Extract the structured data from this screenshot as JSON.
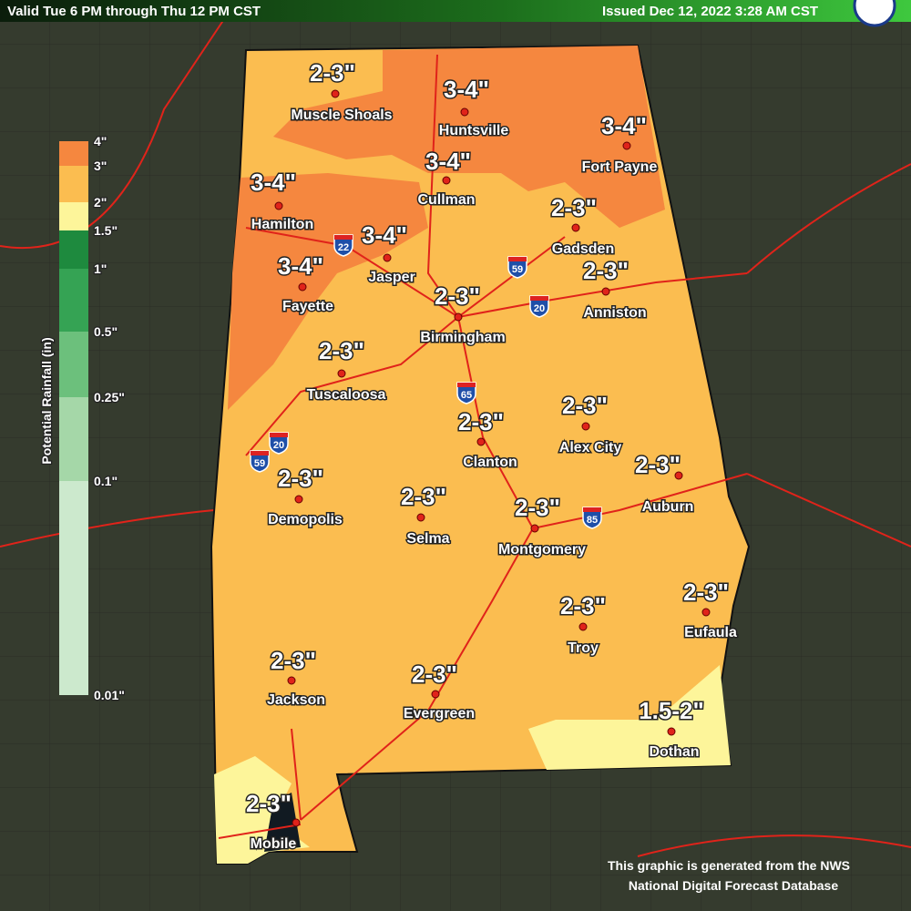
{
  "header": {
    "valid": "Valid Tue 6 PM through Thu 12 PM CST",
    "issued": "Issued Dec 12, 2022 3:28 AM CST"
  },
  "legend": {
    "title": "Potential Rainfall (in)",
    "labels": [
      "4\"",
      "3\"",
      "2\"",
      "1.5\"",
      "1\"",
      "0.5\"",
      "0.25\"",
      "0.1\"",
      "0.01\""
    ]
  },
  "locations": [
    {
      "name": "Muscle Shoals",
      "amount": "2-3\""
    },
    {
      "name": "Huntsville",
      "amount": "3-4\""
    },
    {
      "name": "Fort Payne",
      "amount": "3-4\""
    },
    {
      "name": "Cullman",
      "amount": "3-4\""
    },
    {
      "name": "Hamilton",
      "amount": "3-4\""
    },
    {
      "name": "Jasper",
      "amount": "3-4\""
    },
    {
      "name": "Fayette",
      "amount": "3-4\""
    },
    {
      "name": "Gadsden",
      "amount": "2-3\""
    },
    {
      "name": "Anniston",
      "amount": "2-3\""
    },
    {
      "name": "Birmingham",
      "amount": "2-3\""
    },
    {
      "name": "Tuscaloosa",
      "amount": "2-3\""
    },
    {
      "name": "Alex City",
      "amount": "2-3\""
    },
    {
      "name": "Clanton",
      "amount": "2-3\""
    },
    {
      "name": "Auburn",
      "amount": "2-3\""
    },
    {
      "name": "Demopolis",
      "amount": "2-3\""
    },
    {
      "name": "Selma",
      "amount": "2-3\""
    },
    {
      "name": "Montgomery",
      "amount": "2-3\""
    },
    {
      "name": "Eufaula",
      "amount": "2-3\""
    },
    {
      "name": "Troy",
      "amount": "2-3\""
    },
    {
      "name": "Jackson",
      "amount": "2-3\""
    },
    {
      "name": "Evergreen",
      "amount": "2-3\""
    },
    {
      "name": "Dothan",
      "amount": "1.5-2\""
    },
    {
      "name": "Mobile",
      "amount": "2-3\""
    }
  ],
  "interstates": [
    "22",
    "59",
    "20",
    "65",
    "20",
    "59",
    "85"
  ],
  "footer": {
    "line1": "This graphic is generated from the NWS",
    "line2": "National Digital Forecast Database"
  }
}
